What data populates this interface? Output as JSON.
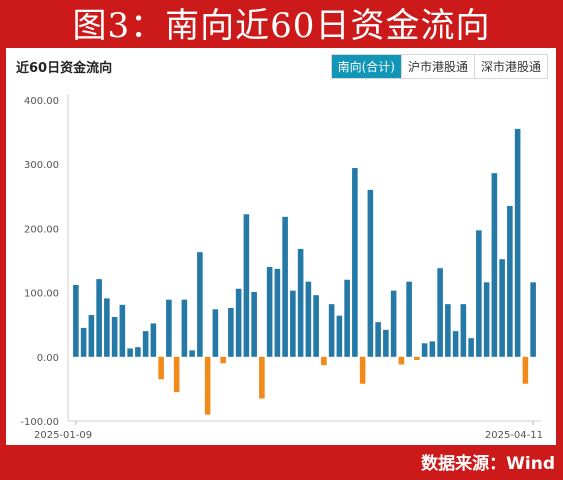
{
  "banner": {
    "title": "图3：南向近60日资金流向"
  },
  "panel": {
    "title": "近60日资金流向",
    "tabs": [
      {
        "label": "南向(合计)",
        "active": true
      },
      {
        "label": "沪市港股通",
        "active": false
      },
      {
        "label": "深市港股通",
        "active": false
      }
    ]
  },
  "footer": {
    "source": "数据来源：Wind"
  },
  "colors": {
    "positive": "#2479a6",
    "negative": "#f08a1a",
    "accent": "#1296b8",
    "frame": "#cc1a1a"
  },
  "chart_data": {
    "type": "bar",
    "ylim": [
      -100,
      400
    ],
    "yticks": [
      "400.00",
      "300.00",
      "200.00",
      "100.00",
      "0.00",
      "-100.00"
    ],
    "x_start_label": "2025-01-09",
    "x_end_label": "2025-04-11",
    "values": [
      112,
      45,
      65,
      121,
      91,
      62,
      81,
      13,
      15,
      40,
      52,
      -35,
      89,
      -55,
      89,
      10,
      163,
      -90,
      74,
      -10,
      76,
      106,
      222,
      101,
      -65,
      140,
      137,
      218,
      103,
      168,
      117,
      96,
      -13,
      82,
      64,
      120,
      294,
      -42,
      260,
      54,
      42,
      103,
      -12,
      117,
      -5,
      21,
      24,
      138,
      82,
      40,
      82,
      29,
      197,
      116,
      286,
      152,
      235,
      355,
      -42,
      116
    ]
  }
}
